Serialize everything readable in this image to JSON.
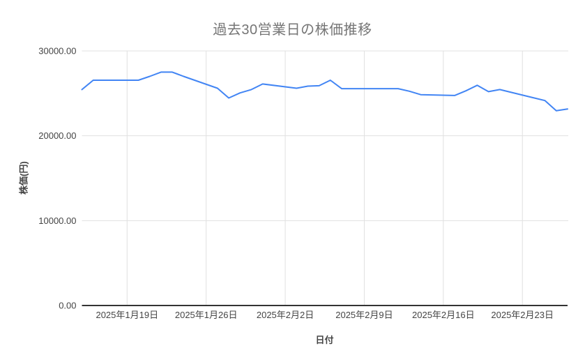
{
  "page": {
    "background": "#ffffff"
  },
  "chart_data": {
    "type": "line",
    "title": "過去30営業日の株価推移",
    "xlabel": "日付",
    "ylabel": "株価(円)",
    "ylim": [
      0,
      30000
    ],
    "x_range": [
      "2025-01-15",
      "2025-02-27"
    ],
    "grid": true,
    "legend": "none",
    "colors": {
      "line": "#4285F4",
      "gridline": "#e0e0e0",
      "axis_line": "#333333",
      "title_text": "#757575",
      "tick_text": "#444444",
      "background": "#ffffff"
    },
    "y_ticks": [
      {
        "value": 0,
        "label": "0.00"
      },
      {
        "value": 10000,
        "label": "10000.00"
      },
      {
        "value": 20000,
        "label": "20000.00"
      },
      {
        "value": 30000,
        "label": "30000.00"
      }
    ],
    "x_ticks": [
      {
        "date": "2025-01-19",
        "label": "2025年1月19日"
      },
      {
        "date": "2025-01-26",
        "label": "2025年1月26日"
      },
      {
        "date": "2025-02-02",
        "label": "2025年2月2日"
      },
      {
        "date": "2025-02-09",
        "label": "2025年2月9日"
      },
      {
        "date": "2025-02-16",
        "label": "2025年2月16日"
      },
      {
        "date": "2025-02-23",
        "label": "2025年2月23日"
      }
    ],
    "series": [
      {
        "name": "株価",
        "color": "#4285F4",
        "points": [
          {
            "date": "2025-01-15",
            "value": 25450
          },
          {
            "date": "2025-01-16",
            "value": 26550
          },
          {
            "date": "2025-01-17",
            "value": 26550
          },
          {
            "date": "2025-01-20",
            "value": 26550
          },
          {
            "date": "2025-01-21",
            "value": 27000
          },
          {
            "date": "2025-01-22",
            "value": 27500
          },
          {
            "date": "2025-01-23",
            "value": 27500
          },
          {
            "date": "2025-01-24",
            "value": 27000
          },
          {
            "date": "2025-01-27",
            "value": 25600
          },
          {
            "date": "2025-01-28",
            "value": 24450
          },
          {
            "date": "2025-01-29",
            "value": 25050
          },
          {
            "date": "2025-01-30",
            "value": 25450
          },
          {
            "date": "2025-01-31",
            "value": 26100
          },
          {
            "date": "2025-02-03",
            "value": 25600
          },
          {
            "date": "2025-02-04",
            "value": 25850
          },
          {
            "date": "2025-02-05",
            "value": 25900
          },
          {
            "date": "2025-02-06",
            "value": 26550
          },
          {
            "date": "2025-02-07",
            "value": 25550
          },
          {
            "date": "2025-02-10",
            "value": 25550
          },
          {
            "date": "2025-02-12",
            "value": 25550
          },
          {
            "date": "2025-02-13",
            "value": 25250
          },
          {
            "date": "2025-02-14",
            "value": 24850
          },
          {
            "date": "2025-02-17",
            "value": 24750
          },
          {
            "date": "2025-02-18",
            "value": 25300
          },
          {
            "date": "2025-02-19",
            "value": 25950
          },
          {
            "date": "2025-02-20",
            "value": 25200
          },
          {
            "date": "2025-02-21",
            "value": 25450
          },
          {
            "date": "2025-02-25",
            "value": 24150
          },
          {
            "date": "2025-02-26",
            "value": 22950
          },
          {
            "date": "2025-02-27",
            "value": 23150
          }
        ]
      }
    ]
  }
}
